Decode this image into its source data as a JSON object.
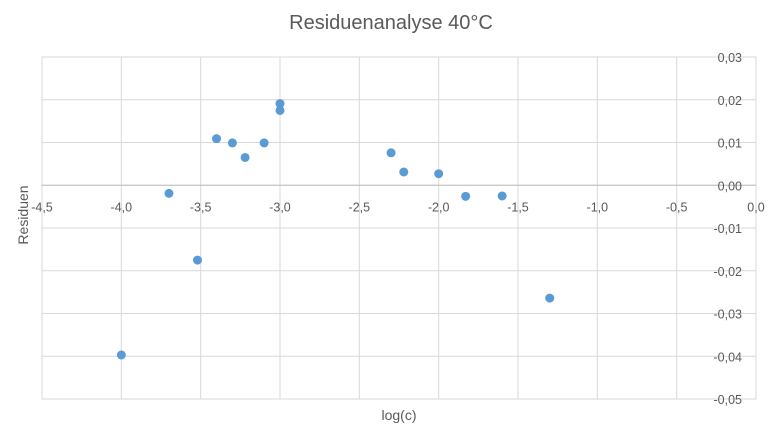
{
  "chart_data": {
    "type": "scatter",
    "title": "Residuenanalyse 40°C",
    "xlabel": "log(c)",
    "ylabel": "Residuen",
    "xlim": [
      -4.5,
      0
    ],
    "ylim": [
      -0.05,
      0.03
    ],
    "x_ticks": [
      "-4,5",
      "-4,0",
      "-3,5",
      "-3,0",
      "-2,5",
      "-2,0",
      "-1,5",
      "-1,0",
      "-0,5",
      "0,0"
    ],
    "y_ticks": [
      "0,03",
      "0,02",
      "0,01",
      "0,00",
      "-0,01",
      "-0,02",
      "-0,03",
      "-0,04",
      "-0,05"
    ],
    "grid": true,
    "legend": "none",
    "marker_color": "#5b9bd5",
    "series": [
      {
        "points": [
          {
            "x": -4.0,
            "y": -0.0397
          },
          {
            "x": -3.7,
            "y": -0.0019
          },
          {
            "x": -3.52,
            "y": -0.0175
          },
          {
            "x": -3.4,
            "y": 0.0109
          },
          {
            "x": -3.3,
            "y": 0.0099
          },
          {
            "x": -3.22,
            "y": 0.0065
          },
          {
            "x": -3.1,
            "y": 0.0099
          },
          {
            "x": -3.0,
            "y": 0.0191
          },
          {
            "x": -3.0,
            "y": 0.0175
          },
          {
            "x": -2.3,
            "y": 0.0076
          },
          {
            "x": -2.22,
            "y": 0.0031
          },
          {
            "x": -2.0,
            "y": 0.0027
          },
          {
            "x": -1.83,
            "y": -0.0026
          },
          {
            "x": -1.6,
            "y": -0.0025
          },
          {
            "x": -1.3,
            "y": -0.0264
          }
        ]
      }
    ]
  }
}
